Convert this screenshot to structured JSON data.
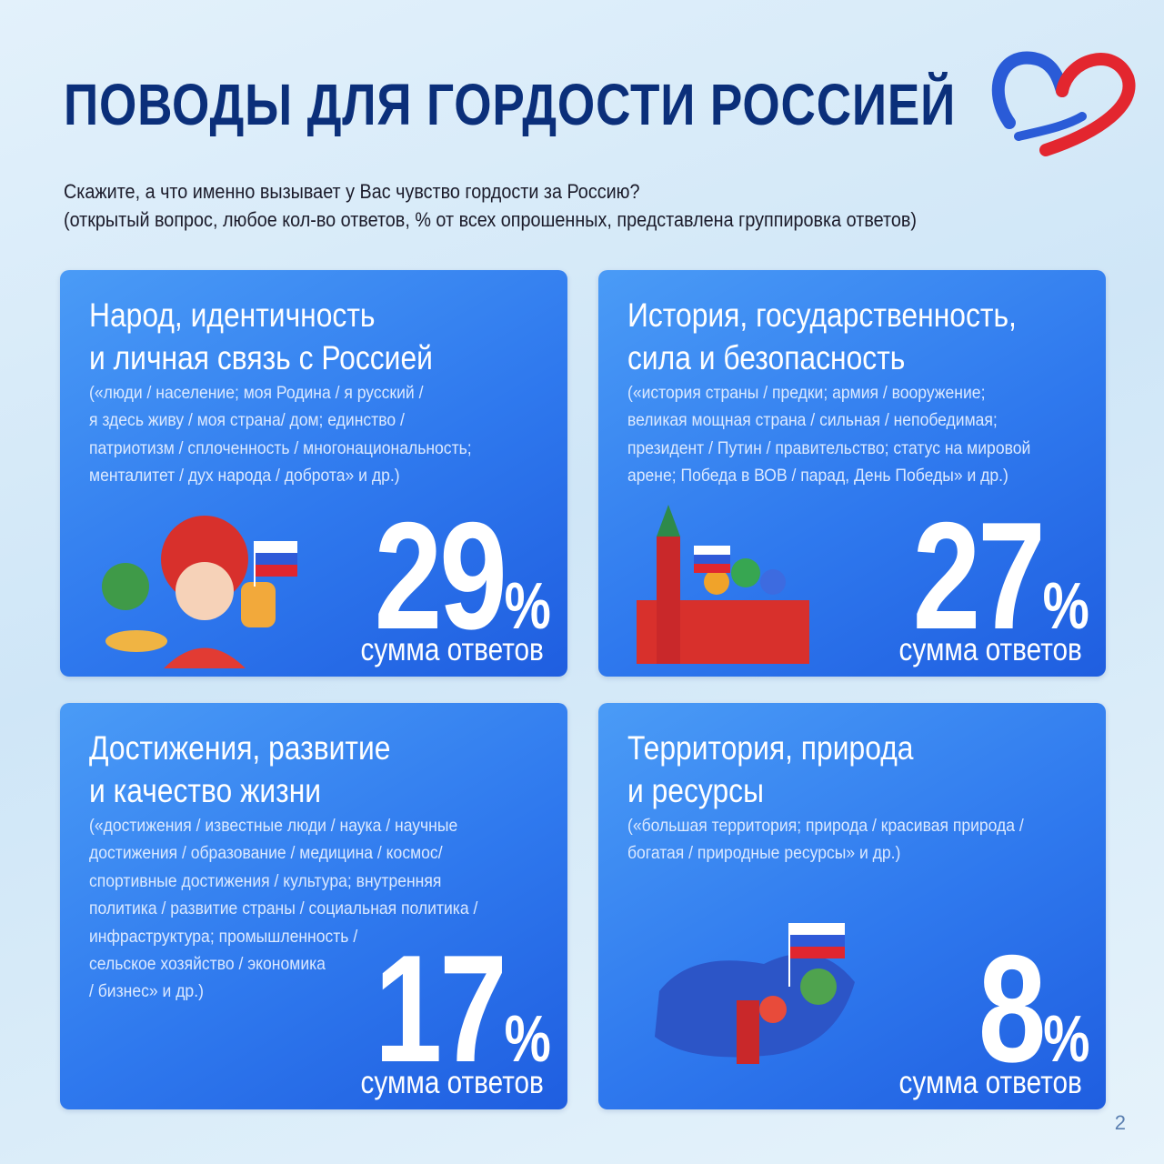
{
  "header": {
    "title": "ПОВОДЫ ДЛЯ ГОРДОСТИ РОССИЕЙ",
    "question": "Скажите, а что именно вызывает у Вас чувство гордости за Россию?",
    "note": "(открытый вопрос, любое кол-во ответов, % от всех опрошенных, представлена группировка ответов)"
  },
  "cards": [
    {
      "title": [
        "Народ, идентичность",
        "и личная связь с Россией"
      ],
      "description": [
        "(«люди / население; моя Родина / я русский /",
        "я здесь живу / моя страна/ дом; единство /",
        "патриотизм / сплоченность / многонациональность;",
        "менталитет / дух народа / доброта» и др.)"
      ],
      "value": 29,
      "unit": "%",
      "caption": "сумма ответов"
    },
    {
      "title": [
        "История, государственность,",
        "сила и безопасность"
      ],
      "description": [
        "(«история страны / предки; армия / вооружение;",
        "великая мощная страна / сильная / непобедимая;",
        "президент / Путин / правительство; статус на мировой",
        "арене; Победа в ВОВ / парад, День Победы» и др.)"
      ],
      "value": 27,
      "unit": "%",
      "caption": "сумма ответов"
    },
    {
      "title": [
        "Достижения, развитие",
        "и качество жизни"
      ],
      "description": [
        "(«достижения / известные люди / наука / научные",
        "достижения / образование / медицина / космос/",
        "спортивные достижения / культура; внутренняя",
        "политика / развитие страны / социальная политика /",
        "инфраструктура; промышленность /",
        "сельское хозяйство / экономика",
        "/ бизнес» и др.)"
      ],
      "value": 17,
      "unit": "%",
      "caption": "сумма ответов"
    },
    {
      "title": [
        "Территория, природа",
        "и ресурсы"
      ],
      "description": [
        "(«большая территория; природа / красивая природа /",
        "богатая / природные ресурсы» и др.)"
      ],
      "value": 8,
      "unit": "%",
      "caption": "сумма ответов"
    }
  ],
  "page_number": 2
}
